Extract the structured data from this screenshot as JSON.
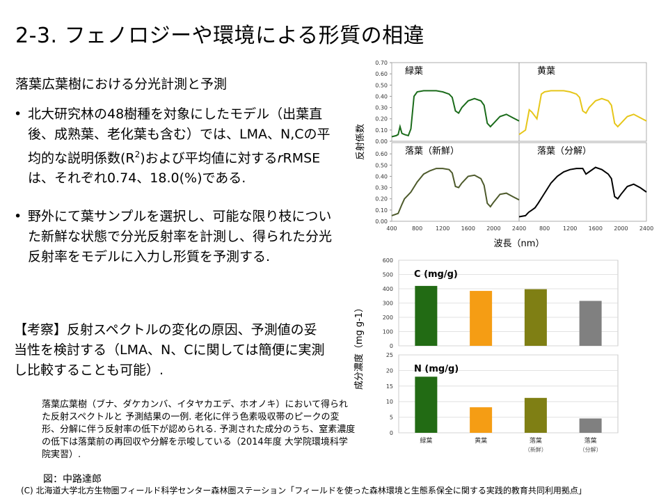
{
  "title": "2-3. フェノロジーや環境による形質の相違",
  "subhead": "落葉広葉樹における分光計測と予測",
  "bullets": [
    {
      "text_before": "北大研究林の48樹種を対象にしたモデル（出葉直後、成熟葉、老化葉も含む）では、LMA、N,Cの平均的な説明係数(R",
      "superscript": "2",
      "text_middle": ")および平均値に対する",
      "italic": "r",
      "text_after": "RMSEは、それぞれ0.74、18.0(%)である."
    },
    {
      "text": "野外にて葉サンプルを選択し、可能な限り枝についた新鮮な状態で分光反射率を計測し、得られた分光反射率をモデルに入力し形質を予測する."
    }
  ],
  "bullet_symbol": "•",
  "consideration": "【考察】反射スペクトルの変化の原因、予測値の妥当性を検討する（LMA、N、Cに関しては簡便に実測し比較することも可能）.",
  "caption": "落葉広葉樹（ブナ、ダケカンバ、イタヤカエデ、ホオノキ）において得られた反射スペクトルと 予測結果の一例. 老化に伴う色素吸収帯のピークの変形、分解に伴う反射率の低下が認められる. 予測された成分のうち、窒素濃度の低下は落葉前の再回収や分解を示唆している（2014年度 大学院環境科学院実習）.",
  "figure_credit": "図：中路達郎",
  "footer": "(C) 北海道大学北方生物圏フィールド科学センター森林圏ステーション「フィールドを使った森林環境と生態系保全に関する実践的教育共同利用拠点」",
  "chart_data": [
    {
      "type": "line",
      "ylabel": "反射係数",
      "xlabel": "波長（nm）",
      "xlim": [
        400,
        2400
      ],
      "ylim": [
        0,
        0.7
      ],
      "xticks": [
        "400",
        "800",
        "1200",
        "1600",
        "2000",
        "2400"
      ],
      "xticks_top": [
        "400",
        "800",
        "1200",
        "1600",
        "2000",
        "2400"
      ],
      "yticks": [
        "0.00",
        "0.10",
        "0.20",
        "0.30",
        "0.40",
        "0.50",
        "0.60",
        "0.70"
      ],
      "panels": [
        {
          "name": "緑葉",
          "color": "#1a6b1a",
          "x": [
            400,
            470,
            500,
            530,
            560,
            600,
            660,
            700,
            750,
            800,
            900,
            1000,
            1100,
            1200,
            1300,
            1350,
            1400,
            1450,
            1500,
            1600,
            1700,
            1800,
            1850,
            1900,
            1950,
            2000,
            2100,
            2200,
            2300,
            2400
          ],
          "y": [
            0.04,
            0.05,
            0.06,
            0.13,
            0.07,
            0.06,
            0.05,
            0.11,
            0.4,
            0.44,
            0.45,
            0.45,
            0.45,
            0.44,
            0.42,
            0.39,
            0.27,
            0.25,
            0.3,
            0.36,
            0.38,
            0.36,
            0.32,
            0.16,
            0.13,
            0.16,
            0.22,
            0.24,
            0.21,
            0.18
          ]
        },
        {
          "name": "黄葉",
          "color": "#e6c619",
          "x": [
            400,
            500,
            560,
            600,
            680,
            750,
            800,
            900,
            1000,
            1100,
            1200,
            1300,
            1350,
            1400,
            1450,
            1500,
            1600,
            1700,
            1800,
            1850,
            1900,
            1950,
            2000,
            2100,
            2200,
            2300,
            2400
          ],
          "y": [
            0.06,
            0.1,
            0.28,
            0.26,
            0.2,
            0.42,
            0.44,
            0.45,
            0.45,
            0.45,
            0.44,
            0.42,
            0.39,
            0.27,
            0.25,
            0.3,
            0.36,
            0.38,
            0.36,
            0.32,
            0.16,
            0.13,
            0.16,
            0.22,
            0.24,
            0.21,
            0.18
          ]
        },
        {
          "name": "落葉（新鮮）",
          "color": "#4d5a2b",
          "x": [
            400,
            500,
            560,
            600,
            650,
            700,
            800,
            900,
            1000,
            1100,
            1200,
            1300,
            1350,
            1400,
            1450,
            1500,
            1600,
            1700,
            1800,
            1850,
            1900,
            1950,
            2000,
            2100,
            2200,
            2300,
            2400
          ],
          "y": [
            0.05,
            0.07,
            0.15,
            0.2,
            0.23,
            0.26,
            0.35,
            0.42,
            0.45,
            0.47,
            0.47,
            0.46,
            0.43,
            0.31,
            0.3,
            0.34,
            0.4,
            0.41,
            0.38,
            0.32,
            0.16,
            0.13,
            0.17,
            0.24,
            0.25,
            0.22,
            0.19
          ]
        },
        {
          "name": "落葉（分解）",
          "color": "#000000",
          "x": [
            400,
            500,
            550,
            600,
            650,
            700,
            800,
            900,
            1000,
            1100,
            1200,
            1300,
            1400,
            1450,
            1500,
            1600,
            1700,
            1800,
            1850,
            1900,
            1950,
            2000,
            2100,
            2200,
            2300,
            2400
          ],
          "y": [
            0.04,
            0.05,
            0.08,
            0.1,
            0.12,
            0.16,
            0.25,
            0.34,
            0.4,
            0.44,
            0.46,
            0.47,
            0.47,
            0.42,
            0.44,
            0.48,
            0.46,
            0.42,
            0.38,
            0.22,
            0.2,
            0.24,
            0.31,
            0.33,
            0.3,
            0.26
          ]
        }
      ]
    },
    {
      "type": "bar",
      "ylabel": "成分濃度（mg g-1）",
      "categories": [
        "緑葉",
        "黄葉",
        "落葉",
        "落葉"
      ],
      "category_sub": [
        "",
        "",
        "（新鮮）",
        "（分解）"
      ],
      "colors": [
        "#226b14",
        "#f59d14",
        "#7f7f14",
        "#808080"
      ],
      "panels": [
        {
          "name": "C (mg/g)",
          "values": [
            420,
            385,
            397,
            315
          ],
          "ylim": [
            0,
            600
          ],
          "yticks": [
            "0",
            "100",
            "200",
            "300",
            "400",
            "500",
            "600"
          ]
        },
        {
          "name": "N (mg/g)",
          "values": [
            18,
            8.2,
            11.2,
            4.6
          ],
          "ylim": [
            0,
            25
          ],
          "yticks": [
            "0",
            "5",
            "10",
            "15",
            "20",
            "25"
          ]
        }
      ]
    }
  ]
}
